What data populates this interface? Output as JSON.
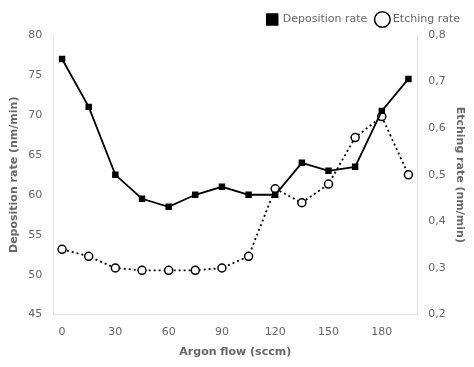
{
  "chart_data": {
    "type": "line",
    "xlabel": "Argon flow (sccm)",
    "ylabel": "Deposition rate (nm/min)",
    "y2label": "Etching rate (nm/min)",
    "x": [
      0,
      15,
      30,
      45,
      60,
      75,
      90,
      105,
      120,
      135,
      150,
      165,
      180,
      195
    ],
    "series": [
      {
        "name": "Deposition rate",
        "color": "#000000",
        "marker": "square",
        "line_style": "solid",
        "values": [
          77,
          71,
          62.5,
          59.5,
          58.5,
          60,
          61,
          60,
          60,
          64,
          63,
          63.5,
          70.5,
          74.5
        ]
      },
      {
        "name": "Etching rate",
        "color": "#000000",
        "marker": "circle",
        "line_style": "dotted",
        "axis": "y2",
        "values": [
          0.34,
          0.325,
          0.3,
          0.295,
          0.295,
          0.295,
          0.3,
          0.325,
          0.47,
          0.44,
          0.48,
          0.58,
          0.625,
          0.5
        ]
      }
    ],
    "xlim": [
      -5,
      200
    ],
    "xticks": [
      0,
      30,
      60,
      90,
      120,
      150,
      180
    ],
    "ylim": [
      45,
      80
    ],
    "yticks": [
      45,
      50,
      55,
      60,
      65,
      70,
      75,
      80
    ],
    "y2lim": [
      0.2,
      0.8
    ],
    "y2ticks": [
      {
        "value": 0.2,
        "label": "0,2"
      },
      {
        "value": 0.3,
        "label": "0,3"
      },
      {
        "value": 0.4,
        "label": "0,4"
      },
      {
        "value": 0.5,
        "label": "0,5"
      },
      {
        "value": 0.6,
        "label": "0,6"
      },
      {
        "value": 0.7,
        "label": "0,7"
      },
      {
        "value": 0.8,
        "label": "0,8"
      }
    ],
    "legend": "upper right",
    "grid": false
  }
}
